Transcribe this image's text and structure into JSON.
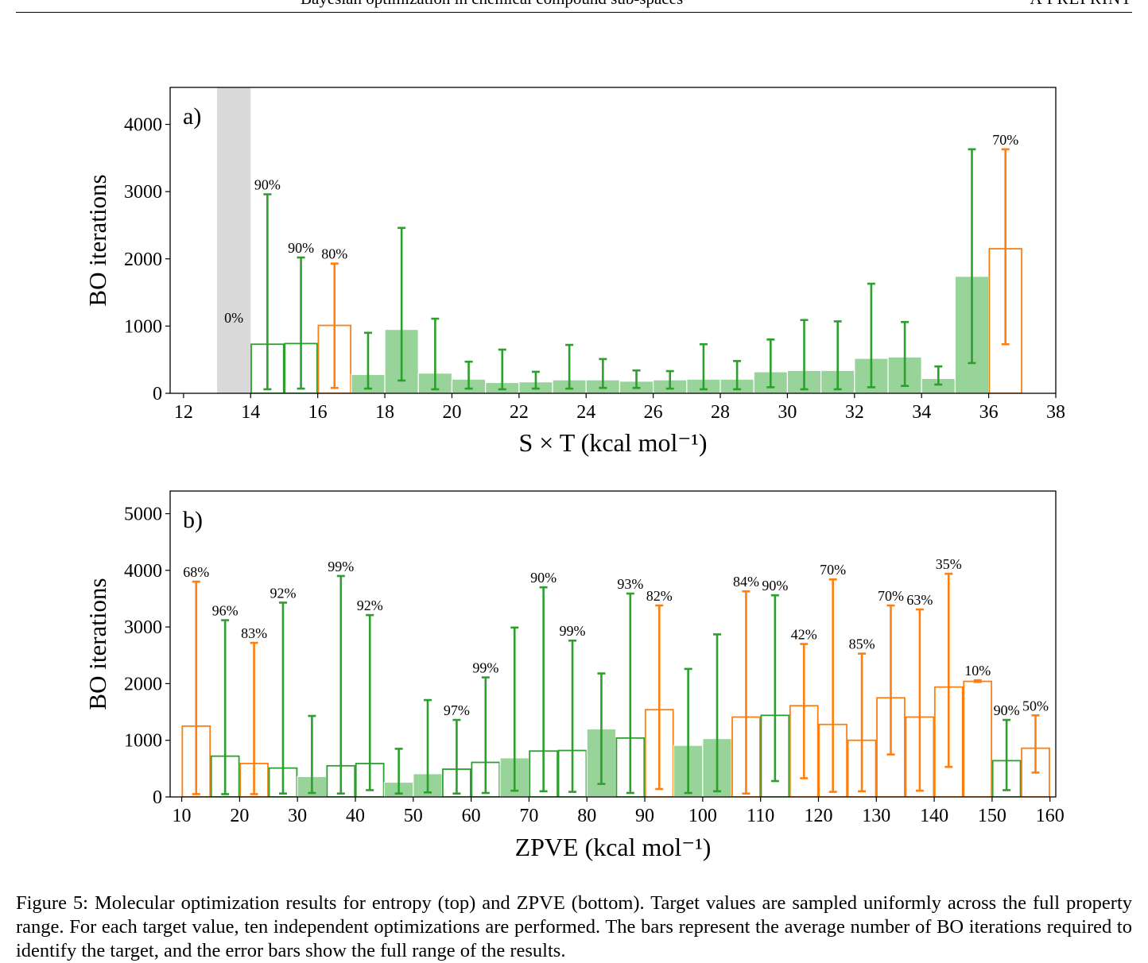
{
  "header": {
    "title": "Bayesian optimization in chemical compound sub-spaces",
    "right": "A PREPRINT"
  },
  "caption": "Figure 5: Molecular optimization results for entropy (top) and ZPVE (bottom). Target values are sampled uniformly across the full property range. For each target value, ten independent optimizations are performed. The bars represent the average number of BO iterations required to identify the target, and the error bars show the full range of the results.",
  "colors": {
    "green": "#2ca02c",
    "green_fill": "#98d499",
    "orange": "#ff7f0e",
    "gray_band": "#d9d9d9"
  },
  "chart_data": [
    {
      "type": "bar",
      "panel_label": "a)",
      "xlabel": "S × T (kcal mol⁻¹)",
      "ylabel": "BO iterations",
      "xlim": [
        11.6,
        38
      ],
      "ylim": [
        0,
        4550
      ],
      "xticks": [
        12,
        14,
        16,
        18,
        20,
        22,
        24,
        26,
        28,
        30,
        32,
        34,
        36,
        38
      ],
      "yticks": [
        0,
        1000,
        2000,
        3000,
        4000
      ],
      "bar_width": 1,
      "gray_band": {
        "x0": 13,
        "x1": 14,
        "label": "0%"
      },
      "bars": [
        {
          "x": 14.5,
          "value": 730,
          "err_low": 60,
          "err_high": 2960,
          "color": "green",
          "filled": false,
          "label": "90%"
        },
        {
          "x": 15.5,
          "value": 740,
          "err_low": 70,
          "err_high": 2020,
          "color": "green",
          "filled": false,
          "label": "90%"
        },
        {
          "x": 16.5,
          "value": 1010,
          "err_low": 80,
          "err_high": 1930,
          "color": "orange",
          "filled": false,
          "label": "80%"
        },
        {
          "x": 17.5,
          "value": 280,
          "err_low": 70,
          "err_high": 900,
          "color": "green",
          "filled": true
        },
        {
          "x": 18.5,
          "value": 950,
          "err_low": 190,
          "err_high": 2460,
          "color": "green",
          "filled": true
        },
        {
          "x": 19.5,
          "value": 300,
          "err_low": 60,
          "err_high": 1110,
          "color": "green",
          "filled": true
        },
        {
          "x": 20.5,
          "value": 210,
          "err_low": 70,
          "err_high": 470,
          "color": "green",
          "filled": true
        },
        {
          "x": 21.5,
          "value": 160,
          "err_low": 60,
          "err_high": 650,
          "color": "green",
          "filled": true
        },
        {
          "x": 22.5,
          "value": 170,
          "err_low": 70,
          "err_high": 320,
          "color": "green",
          "filled": true
        },
        {
          "x": 23.5,
          "value": 200,
          "err_low": 70,
          "err_high": 720,
          "color": "green",
          "filled": true
        },
        {
          "x": 24.5,
          "value": 200,
          "err_low": 80,
          "err_high": 510,
          "color": "green",
          "filled": true
        },
        {
          "x": 25.5,
          "value": 180,
          "err_low": 80,
          "err_high": 340,
          "color": "green",
          "filled": true
        },
        {
          "x": 26.5,
          "value": 200,
          "err_low": 70,
          "err_high": 330,
          "color": "green",
          "filled": true
        },
        {
          "x": 27.5,
          "value": 210,
          "err_low": 60,
          "err_high": 730,
          "color": "green",
          "filled": true
        },
        {
          "x": 28.5,
          "value": 210,
          "err_low": 60,
          "err_high": 480,
          "color": "green",
          "filled": true
        },
        {
          "x": 29.5,
          "value": 320,
          "err_low": 90,
          "err_high": 800,
          "color": "green",
          "filled": true
        },
        {
          "x": 30.5,
          "value": 340,
          "err_low": 60,
          "err_high": 1090,
          "color": "green",
          "filled": true
        },
        {
          "x": 31.5,
          "value": 340,
          "err_low": 60,
          "err_high": 1070,
          "color": "green",
          "filled": true
        },
        {
          "x": 32.5,
          "value": 520,
          "err_low": 90,
          "err_high": 1630,
          "color": "green",
          "filled": true
        },
        {
          "x": 33.5,
          "value": 540,
          "err_low": 110,
          "err_high": 1060,
          "color": "green",
          "filled": true
        },
        {
          "x": 34.5,
          "value": 220,
          "err_low": 130,
          "err_high": 400,
          "color": "green",
          "filled": true
        },
        {
          "x": 35.5,
          "value": 1740,
          "err_low": 450,
          "err_high": 3630,
          "color": "green",
          "filled": true
        },
        {
          "x": 36.5,
          "value": 2150,
          "err_low": 730,
          "err_high": 3630,
          "color": "orange",
          "filled": false,
          "label": "70%"
        }
      ]
    },
    {
      "type": "bar",
      "panel_label": "b)",
      "xlabel": "ZPVE (kcal mol⁻¹)",
      "ylabel": "BO iterations",
      "xlim": [
        8,
        161
      ],
      "ylim": [
        0,
        5400
      ],
      "xticks": [
        10,
        20,
        30,
        40,
        50,
        60,
        70,
        80,
        90,
        100,
        110,
        120,
        130,
        140,
        150,
        160
      ],
      "yticks": [
        0,
        1000,
        2000,
        3000,
        4000,
        5000
      ],
      "bar_width": 5,
      "bars": [
        {
          "x": 12.5,
          "value": 1250,
          "err_low": 50,
          "err_high": 3800,
          "color": "orange",
          "filled": false,
          "label": "68%"
        },
        {
          "x": 17.5,
          "value": 720,
          "err_low": 50,
          "err_high": 3120,
          "color": "green",
          "filled": false,
          "label": "96%"
        },
        {
          "x": 22.5,
          "value": 590,
          "err_low": 50,
          "err_high": 2720,
          "color": "orange",
          "filled": false,
          "label": "83%"
        },
        {
          "x": 27.5,
          "value": 510,
          "err_low": 60,
          "err_high": 3430,
          "color": "green",
          "filled": false,
          "label": "92%"
        },
        {
          "x": 32.5,
          "value": 360,
          "err_low": 70,
          "err_high": 1430,
          "color": "green",
          "filled": true
        },
        {
          "x": 37.5,
          "value": 550,
          "err_low": 60,
          "err_high": 3900,
          "color": "green",
          "filled": false,
          "label": "99%"
        },
        {
          "x": 42.5,
          "value": 590,
          "err_low": 120,
          "err_high": 3210,
          "color": "green",
          "filled": false,
          "label": "92%"
        },
        {
          "x": 47.5,
          "value": 260,
          "err_low": 60,
          "err_high": 850,
          "color": "green",
          "filled": true
        },
        {
          "x": 52.5,
          "value": 410,
          "err_low": 80,
          "err_high": 1710,
          "color": "green",
          "filled": true
        },
        {
          "x": 57.5,
          "value": 490,
          "err_low": 60,
          "err_high": 1360,
          "color": "green",
          "filled": false,
          "label": "97%"
        },
        {
          "x": 62.5,
          "value": 610,
          "err_low": 70,
          "err_high": 2110,
          "color": "green",
          "filled": false,
          "label": "99%"
        },
        {
          "x": 67.5,
          "value": 690,
          "err_low": 110,
          "err_high": 2990,
          "color": "green",
          "filled": true
        },
        {
          "x": 72.5,
          "value": 810,
          "err_low": 100,
          "err_high": 3700,
          "color": "green",
          "filled": false,
          "label": "90%"
        },
        {
          "x": 77.5,
          "value": 820,
          "err_low": 90,
          "err_high": 2760,
          "color": "green",
          "filled": false,
          "label": "99%"
        },
        {
          "x": 82.5,
          "value": 1200,
          "err_low": 230,
          "err_high": 2180,
          "color": "green",
          "filled": true
        },
        {
          "x": 87.5,
          "value": 1040,
          "err_low": 70,
          "err_high": 3590,
          "color": "green",
          "filled": false,
          "label": "93%"
        },
        {
          "x": 92.5,
          "value": 1540,
          "err_low": 140,
          "err_high": 3380,
          "color": "orange",
          "filled": false,
          "label": "82%"
        },
        {
          "x": 97.5,
          "value": 910,
          "err_low": 70,
          "err_high": 2260,
          "color": "green",
          "filled": true
        },
        {
          "x": 102.5,
          "value": 1030,
          "err_low": 100,
          "err_high": 2870,
          "color": "green",
          "filled": true
        },
        {
          "x": 107.5,
          "value": 1410,
          "err_low": 60,
          "err_high": 3630,
          "color": "orange",
          "filled": false,
          "label": "84%"
        },
        {
          "x": 112.5,
          "value": 1440,
          "err_low": 280,
          "err_high": 3560,
          "color": "green",
          "filled": false,
          "label": "90%"
        },
        {
          "x": 117.5,
          "value": 1610,
          "err_low": 330,
          "err_high": 2700,
          "color": "orange",
          "filled": false,
          "label": "42%"
        },
        {
          "x": 122.5,
          "value": 1280,
          "err_low": 90,
          "err_high": 3840,
          "color": "orange",
          "filled": false,
          "label": "70%"
        },
        {
          "x": 127.5,
          "value": 1000,
          "err_low": 100,
          "err_high": 2530,
          "color": "orange",
          "filled": false,
          "label": "85%"
        },
        {
          "x": 132.5,
          "value": 1750,
          "err_low": 750,
          "err_high": 3380,
          "color": "orange",
          "filled": false,
          "label": "70%"
        },
        {
          "x": 137.5,
          "value": 1410,
          "err_low": 110,
          "err_high": 3310,
          "color": "orange",
          "filled": false,
          "label": "63%"
        },
        {
          "x": 142.5,
          "value": 1940,
          "err_low": 530,
          "err_high": 3940,
          "color": "orange",
          "filled": false,
          "label": "35%"
        },
        {
          "x": 147.5,
          "value": 2040,
          "err_low": 2030,
          "err_high": 2060,
          "color": "orange",
          "filled": false,
          "label": "10%"
        },
        {
          "x": 152.5,
          "value": 640,
          "err_low": 120,
          "err_high": 1360,
          "color": "green",
          "filled": false,
          "label": "90%"
        },
        {
          "x": 157.5,
          "value": 860,
          "err_low": 430,
          "err_high": 1440,
          "color": "orange",
          "filled": false,
          "label": "50%"
        }
      ]
    }
  ]
}
